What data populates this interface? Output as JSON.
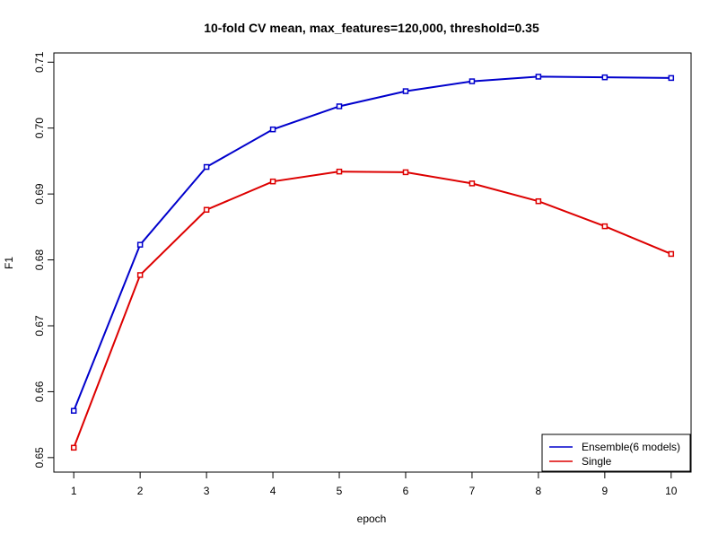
{
  "chart_data": {
    "type": "line",
    "title": "10-fold CV mean, max_features=120,000, threshold=0.35",
    "xlabel": "epoch",
    "ylabel": "F1",
    "x": [
      1,
      2,
      3,
      4,
      5,
      6,
      7,
      8,
      9,
      10
    ],
    "xlim": [
      0.7,
      10.3
    ],
    "ylim": [
      0.6478,
      0.7114
    ],
    "xticks": [
      "1",
      "2",
      "3",
      "4",
      "5",
      "6",
      "7",
      "8",
      "9",
      "10"
    ],
    "yticks": [
      "0.65",
      "0.66",
      "0.67",
      "0.68",
      "0.69",
      "0.70",
      "0.71"
    ],
    "grid": false,
    "legend_position": "bottom-right",
    "series": [
      {
        "name": "Ensemble(6 models)",
        "color": "#0000cc",
        "values": [
          0.6571,
          0.6823,
          0.6941,
          0.6998,
          0.7033,
          0.7056,
          0.7071,
          0.7078,
          0.7077,
          0.7076
        ]
      },
      {
        "name": "Single",
        "color": "#dd0000",
        "values": [
          0.6515,
          0.6777,
          0.6876,
          0.6919,
          0.6934,
          0.6933,
          0.6916,
          0.6889,
          0.6851,
          0.6809
        ]
      }
    ]
  }
}
